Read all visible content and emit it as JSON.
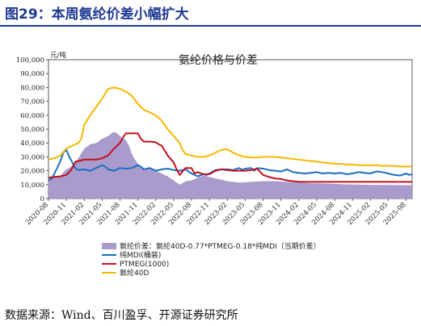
{
  "figure": {
    "title": "图29：本周氨纶价差小幅扩大",
    "source": "数据来源：Wind、百川盈孚、开源证券研究所"
  },
  "colors": {
    "title": "#1f3a93",
    "spread": "#a99bcc",
    "mdi": "#1a6fc0",
    "ptmeg": "#c0121f",
    "spandex": "#f5b800"
  },
  "chart_data": {
    "type": "line",
    "title": "氨纶价格与价差",
    "ylabel": "元/吨",
    "ylim": [
      0,
      100000
    ],
    "yticks": [
      "0",
      "10,000",
      "20,000",
      "30,000",
      "40,000",
      "50,000",
      "60,000",
      "70,000",
      "80,000",
      "90,000",
      "100,000"
    ],
    "x_tick_labels": [
      "2020-08",
      "2020-11",
      "2021-02",
      "2021-05",
      "2021-08",
      "2021-11",
      "2022-02",
      "2022-05",
      "2022-08",
      "2022-11",
      "2023-02",
      "2023-05",
      "2023-08",
      "2023-11",
      "2024-02",
      "2024-05",
      "2024-08",
      "2024-11",
      "2025-02",
      "2025-05",
      "2025-08"
    ],
    "x_range_months": [
      0,
      61
    ],
    "legend_position": "bottom",
    "series": [
      {
        "name": "氨纶价差：氨纶40D-0.77*PTMEG-0.18*纯MDI（当期价差）",
        "key": "spread",
        "style": "area",
        "points": [
          [
            0,
            14500
          ],
          [
            1,
            15000
          ],
          [
            2,
            16000
          ],
          [
            2.5,
            19000
          ],
          [
            3,
            21000
          ],
          [
            3.5,
            22000
          ],
          [
            4,
            24000
          ],
          [
            4.5,
            26000
          ],
          [
            5,
            29000
          ],
          [
            6,
            36000
          ],
          [
            7,
            39000
          ],
          [
            8,
            40000
          ],
          [
            9,
            43000
          ],
          [
            10,
            45000
          ],
          [
            10.5,
            47000
          ],
          [
            11,
            48000
          ],
          [
            11.5,
            47000
          ],
          [
            12,
            45000
          ],
          [
            13,
            42000
          ],
          [
            13.5,
            38000
          ],
          [
            14,
            32000
          ],
          [
            14.5,
            28000
          ],
          [
            15,
            25000
          ],
          [
            16,
            21000
          ],
          [
            17,
            22000
          ],
          [
            18,
            20000
          ],
          [
            19,
            18000
          ],
          [
            20,
            16000
          ],
          [
            21,
            13000
          ],
          [
            22,
            10000
          ],
          [
            22.5,
            11000
          ],
          [
            23,
            12500
          ],
          [
            24,
            13000
          ],
          [
            25,
            15000
          ],
          [
            26,
            16500
          ],
          [
            27,
            15500
          ],
          [
            28,
            14500
          ],
          [
            29,
            13500
          ],
          [
            30,
            12500
          ],
          [
            32,
            11500
          ],
          [
            34,
            12000
          ],
          [
            36,
            12500
          ],
          [
            38,
            12500
          ],
          [
            40,
            12000
          ],
          [
            42,
            11500
          ],
          [
            44,
            11000
          ],
          [
            46,
            10800
          ],
          [
            48,
            10500
          ],
          [
            50,
            10200
          ],
          [
            52,
            10000
          ],
          [
            54,
            9800
          ],
          [
            56,
            9700
          ],
          [
            58,
            9700
          ],
          [
            60,
            9600
          ],
          [
            61,
            9600
          ]
        ]
      },
      {
        "name": "纯MDI(桶装)",
        "key": "mdi",
        "style": "line",
        "points": [
          [
            0,
            13000
          ],
          [
            0.5,
            14000
          ],
          [
            1,
            18000
          ],
          [
            2,
            27000
          ],
          [
            2.5,
            33000
          ],
          [
            3,
            35000
          ],
          [
            3.5,
            30000
          ],
          [
            4,
            26000
          ],
          [
            4.5,
            22000
          ],
          [
            5,
            20500
          ],
          [
            6,
            21000
          ],
          [
            7,
            20000
          ],
          [
            8,
            22000
          ],
          [
            9,
            24000
          ],
          [
            9.5,
            23000
          ],
          [
            10,
            21000
          ],
          [
            11,
            20000
          ],
          [
            12,
            22000
          ],
          [
            13,
            21500
          ],
          [
            14,
            22000
          ],
          [
            15,
            24000
          ],
          [
            15.5,
            23000
          ],
          [
            16,
            21000
          ],
          [
            16.5,
            21500
          ],
          [
            17,
            22000
          ],
          [
            17.5,
            21000
          ],
          [
            18,
            20000
          ],
          [
            19,
            21000
          ],
          [
            20,
            21500
          ],
          [
            21,
            20500
          ],
          [
            22,
            20000
          ],
          [
            22.5,
            20500
          ],
          [
            23,
            21000
          ],
          [
            24,
            18000
          ],
          [
            25,
            16000
          ],
          [
            26,
            17500
          ],
          [
            26.5,
            17000
          ],
          [
            27,
            18000
          ],
          [
            28,
            20500
          ],
          [
            29,
            21000
          ],
          [
            30,
            21000
          ],
          [
            31,
            20500
          ],
          [
            32,
            22000
          ],
          [
            32.5,
            20500
          ],
          [
            33,
            21500
          ],
          [
            34,
            22000
          ],
          [
            34.5,
            20000
          ],
          [
            35,
            22000
          ],
          [
            36,
            21500
          ],
          [
            37,
            20500
          ],
          [
            38,
            20000
          ],
          [
            39,
            19500
          ],
          [
            40,
            21000
          ],
          [
            41,
            19000
          ],
          [
            42,
            18500
          ],
          [
            43,
            18000
          ],
          [
            44,
            18500
          ],
          [
            45,
            19000
          ],
          [
            46,
            18000
          ],
          [
            47,
            18500
          ],
          [
            48,
            18000
          ],
          [
            49,
            18500
          ],
          [
            50,
            17500
          ],
          [
            51,
            18000
          ],
          [
            52,
            19000
          ],
          [
            53,
            18500
          ],
          [
            54,
            18000
          ],
          [
            55,
            19500
          ],
          [
            56,
            19000
          ],
          [
            57,
            18000
          ],
          [
            58,
            17000
          ],
          [
            59,
            16500
          ],
          [
            60,
            18000
          ],
          [
            60.5,
            17000
          ],
          [
            61,
            17500
          ]
        ]
      },
      {
        "name": "PTMEG(1000)",
        "key": "ptmeg",
        "style": "line",
        "points": [
          [
            0,
            15000
          ],
          [
            1,
            15500
          ],
          [
            2,
            16000
          ],
          [
            3,
            17000
          ],
          [
            3.5,
            19000
          ],
          [
            4,
            22000
          ],
          [
            4.5,
            26500
          ],
          [
            5,
            27000
          ],
          [
            6,
            28000
          ],
          [
            7,
            28000
          ],
          [
            8,
            28000
          ],
          [
            9,
            29000
          ],
          [
            10,
            31000
          ],
          [
            11,
            36000
          ],
          [
            12,
            40000
          ],
          [
            12.5,
            44000
          ],
          [
            13,
            47000
          ],
          [
            14,
            47000
          ],
          [
            15,
            47000
          ],
          [
            15.5,
            43000
          ],
          [
            16,
            41000
          ],
          [
            17,
            41000
          ],
          [
            18,
            40500
          ],
          [
            18.5,
            39000
          ],
          [
            19,
            38000
          ],
          [
            20,
            31000
          ],
          [
            21,
            26000
          ],
          [
            21.5,
            21000
          ],
          [
            22,
            17000
          ],
          [
            23,
            22000
          ],
          [
            24,
            22000
          ],
          [
            24.5,
            18000
          ],
          [
            25,
            19000
          ],
          [
            26,
            17500
          ],
          [
            27,
            17500
          ],
          [
            28,
            20000
          ],
          [
            29,
            21000
          ],
          [
            30,
            20500
          ],
          [
            31,
            20000
          ],
          [
            32,
            20000
          ],
          [
            33,
            20000
          ],
          [
            34,
            20500
          ],
          [
            35,
            21500
          ],
          [
            36,
            17000
          ],
          [
            37,
            15500
          ],
          [
            38,
            14500
          ],
          [
            39,
            14000
          ],
          [
            40,
            13000
          ],
          [
            41,
            12500
          ],
          [
            42,
            12000
          ],
          [
            43,
            12000
          ],
          [
            44,
            12000
          ],
          [
            46,
            12000
          ],
          [
            48,
            12000
          ],
          [
            50,
            12000
          ],
          [
            52,
            12000
          ],
          [
            54,
            12000
          ],
          [
            56,
            12000
          ],
          [
            58,
            12000
          ],
          [
            60,
            12000
          ],
          [
            61,
            12000
          ]
        ]
      },
      {
        "name": "氨纶40D",
        "key": "spandex",
        "style": "line",
        "points": [
          [
            0,
            28000
          ],
          [
            1,
            29000
          ],
          [
            2,
            31000
          ],
          [
            3,
            36000
          ],
          [
            4,
            38000
          ],
          [
            5,
            40000
          ],
          [
            5.5,
            43000
          ],
          [
            6,
            53000
          ],
          [
            7,
            60000
          ],
          [
            8,
            66000
          ],
          [
            9,
            72000
          ],
          [
            10,
            79000
          ],
          [
            11,
            80000
          ],
          [
            12,
            79000
          ],
          [
            13,
            77000
          ],
          [
            14,
            74000
          ],
          [
            15,
            68000
          ],
          [
            16,
            64000
          ],
          [
            17,
            62000
          ],
          [
            18,
            60000
          ],
          [
            19,
            56000
          ],
          [
            20,
            50000
          ],
          [
            21,
            45000
          ],
          [
            22,
            40000
          ],
          [
            22.5,
            35000
          ],
          [
            23,
            32000
          ],
          [
            24,
            31000
          ],
          [
            25,
            30000
          ],
          [
            26,
            30000
          ],
          [
            27,
            31000
          ],
          [
            28,
            33000
          ],
          [
            29,
            35000
          ],
          [
            30,
            35500
          ],
          [
            31,
            33000
          ],
          [
            32,
            31000
          ],
          [
            33,
            30000
          ],
          [
            34,
            29500
          ],
          [
            35,
            29500
          ],
          [
            36,
            30000
          ],
          [
            37,
            30000
          ],
          [
            38,
            30000
          ],
          [
            39,
            29500
          ],
          [
            40,
            29000
          ],
          [
            41,
            28500
          ],
          [
            42,
            28000
          ],
          [
            43,
            27500
          ],
          [
            44,
            27000
          ],
          [
            45,
            26500
          ],
          [
            46,
            26000
          ],
          [
            47,
            25500
          ],
          [
            48,
            25000
          ],
          [
            49,
            25000
          ],
          [
            50,
            24500
          ],
          [
            51,
            24500
          ],
          [
            52,
            24000
          ],
          [
            53,
            24000
          ],
          [
            54,
            24000
          ],
          [
            55,
            24000
          ],
          [
            56,
            23500
          ],
          [
            57,
            23500
          ],
          [
            58,
            23500
          ],
          [
            59,
            23000
          ],
          [
            60,
            23000
          ],
          [
            61,
            23000
          ]
        ]
      }
    ]
  }
}
